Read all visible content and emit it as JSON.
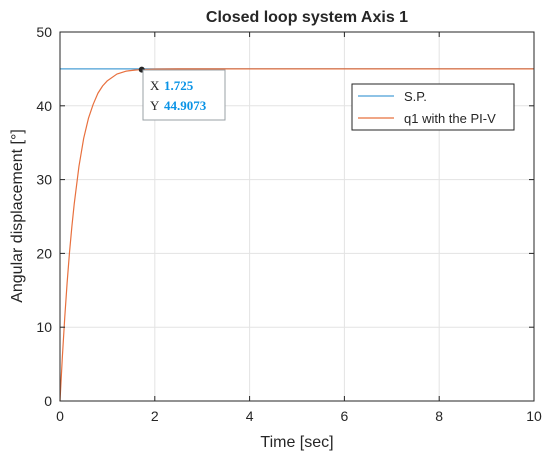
{
  "chart_data": {
    "type": "line",
    "title": "Closed loop system Axis 1",
    "xlabel": "Time [sec]",
    "ylabel": "Angular displacement [°]",
    "xlim": [
      0,
      10
    ],
    "ylim": [
      0,
      50
    ],
    "xticks": [
      "0",
      "2",
      "4",
      "6",
      "8",
      "10"
    ],
    "yticks": [
      "0",
      "10",
      "20",
      "30",
      "40",
      "50"
    ],
    "grid": true,
    "legend_position": "top-right",
    "series": [
      {
        "name": "S.P.",
        "color": "#4a9fd6",
        "x": [
          0,
          10
        ],
        "y": [
          45,
          45
        ]
      },
      {
        "name": "q1 with the PI-V",
        "color": "#e8703e",
        "x": [
          0,
          0.05,
          0.1,
          0.15,
          0.2,
          0.25,
          0.3,
          0.4,
          0.5,
          0.6,
          0.7,
          0.8,
          0.9,
          1.0,
          1.2,
          1.4,
          1.6,
          1.725,
          2.0,
          2.5,
          3.0,
          4.0,
          6.0,
          8.0,
          10.0
        ],
        "y": [
          0,
          6.0,
          11.3,
          16.0,
          20.1,
          23.6,
          26.7,
          31.8,
          35.6,
          38.3,
          40.2,
          41.7,
          42.7,
          43.4,
          44.3,
          44.7,
          44.85,
          44.9073,
          44.97,
          45.0,
          45.0,
          45.0,
          45.0,
          45.0,
          45.0
        ]
      }
    ],
    "datatip": {
      "x_key": "X",
      "x_value": "1.725",
      "y_key": "Y",
      "y_value": "44.9073",
      "x": 1.725,
      "y": 44.9073
    }
  }
}
